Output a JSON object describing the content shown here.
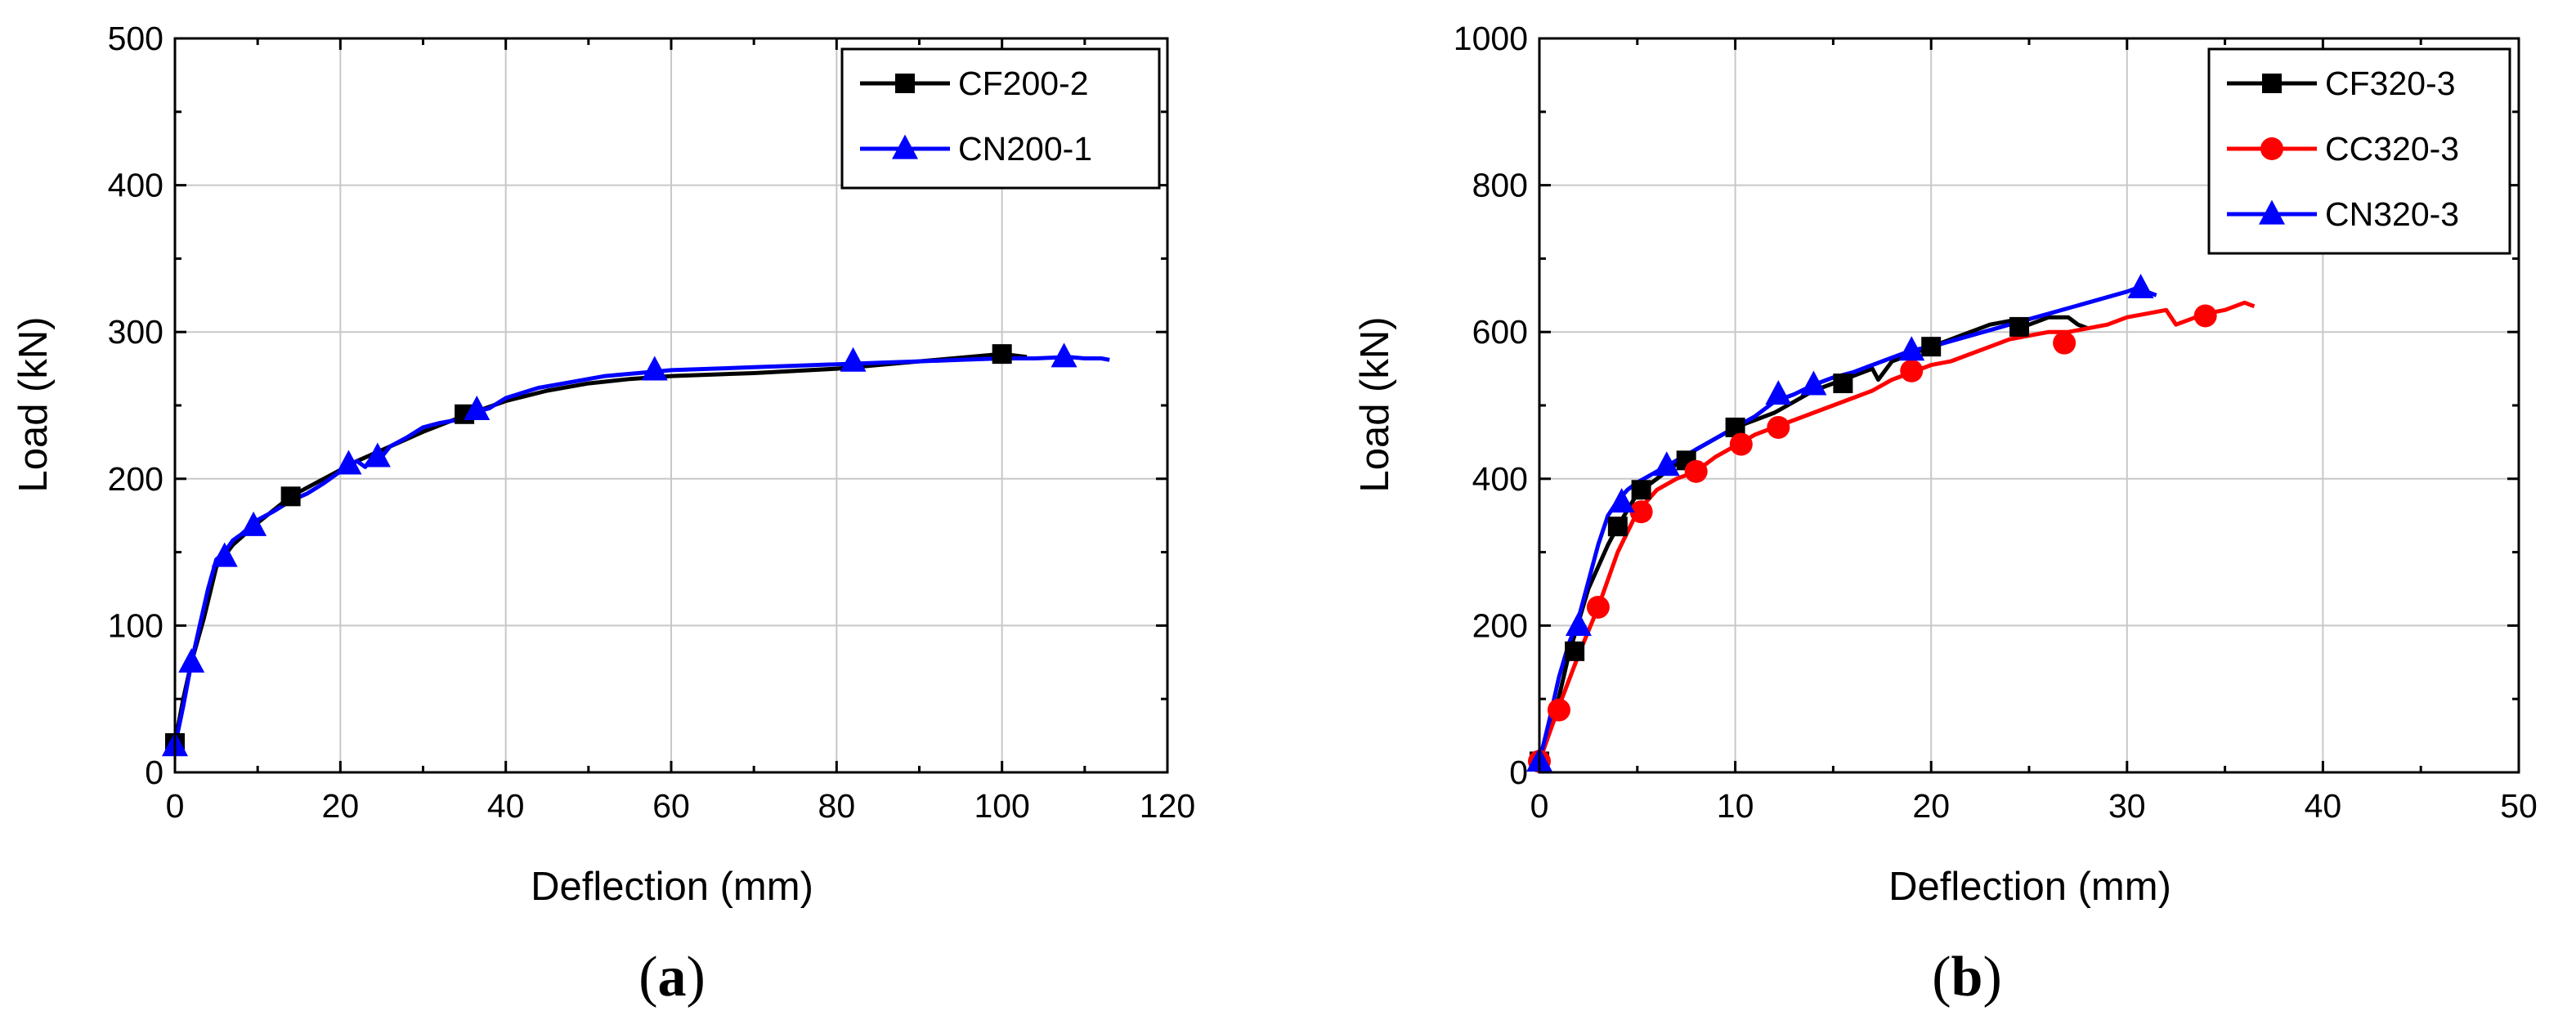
{
  "chart_data": [
    {
      "type": "line",
      "caption_letter": "a",
      "xlabel": "Deflection (mm)",
      "ylabel": "Load (kN)",
      "xlim": [
        0,
        120
      ],
      "ylim": [
        0,
        500
      ],
      "xticks": [
        0,
        20,
        40,
        60,
        80,
        100,
        120
      ],
      "yticks": [
        0,
        100,
        200,
        300,
        400,
        500
      ],
      "x_minor": 10,
      "y_minor": 50,
      "grid": true,
      "legend_position": "top-right",
      "series": [
        {
          "name": "CF200-2",
          "color": "#000000",
          "marker": "square",
          "x": [
            0,
            1,
            2,
            3.5,
            5,
            7,
            10,
            14,
            18,
            22,
            26,
            30,
            35,
            40,
            45,
            50,
            55,
            60,
            70,
            80,
            90,
            100,
            103
          ],
          "y": [
            20,
            50,
            75,
            105,
            140,
            155,
            170,
            188,
            200,
            212,
            222,
            232,
            243,
            253,
            260,
            265,
            268,
            270,
            272,
            275,
            280,
            285,
            283
          ],
          "marker_x": [
            0,
            14,
            35,
            100
          ],
          "marker_y": [
            20,
            188,
            244,
            285
          ]
        },
        {
          "name": "CN200-1",
          "color": "#0000ff",
          "marker": "triangle",
          "x": [
            0,
            1,
            2,
            3,
            4,
            5,
            6,
            7,
            8,
            9,
            10,
            12,
            14,
            16,
            18,
            20,
            21,
            22,
            23,
            24,
            25,
            26,
            28,
            30,
            32,
            34,
            36,
            38,
            40,
            44,
            48,
            52,
            56,
            60,
            65,
            70,
            75,
            80,
            85,
            90,
            95,
            100,
            104,
            108,
            110,
            112,
            113
          ],
          "y": [
            18,
            45,
            75,
            100,
            125,
            145,
            150,
            158,
            162,
            167,
            172,
            178,
            185,
            190,
            197,
            205,
            210,
            212,
            208,
            216,
            215,
            222,
            228,
            235,
            238,
            240,
            245,
            248,
            255,
            262,
            266,
            270,
            272,
            274,
            275,
            276,
            277,
            278,
            279,
            280,
            281,
            282,
            282,
            283,
            282,
            282,
            281
          ],
          "marker_x": [
            0,
            2,
            6,
            9.5,
            21,
            24.5,
            36.5,
            58,
            82,
            107.5
          ],
          "marker_y": [
            18,
            75,
            147,
            168,
            210,
            215,
            247,
            274,
            280,
            283
          ]
        }
      ]
    },
    {
      "type": "line",
      "caption_letter": "b",
      "xlabel": "Deflection (mm)",
      "ylabel": "Load (kN)",
      "xlim": [
        0,
        50
      ],
      "ylim": [
        0,
        1000
      ],
      "xticks": [
        0,
        10,
        20,
        30,
        40,
        50
      ],
      "yticks": [
        0,
        200,
        400,
        600,
        800,
        1000
      ],
      "x_minor": 5,
      "y_minor": 100,
      "grid": true,
      "legend_position": "top-right",
      "series": [
        {
          "name": "CF320-3",
          "color": "#000000",
          "marker": "square",
          "x": [
            0,
            0.8,
            1.5,
            2.5,
            3.5,
            4,
            5,
            6,
            7,
            8,
            9,
            10,
            11,
            12,
            13,
            14,
            15,
            16,
            17,
            17.3,
            18,
            19,
            20,
            21,
            22,
            23,
            24,
            25,
            26,
            27,
            27.5,
            28
          ],
          "y": [
            15,
            80,
            160,
            250,
            310,
            335,
            380,
            400,
            420,
            440,
            455,
            470,
            480,
            490,
            505,
            520,
            530,
            540,
            550,
            535,
            560,
            570,
            580,
            590,
            600,
            610,
            615,
            610,
            620,
            620,
            610,
            605
          ],
          "marker_x": [
            0,
            1.8,
            4,
            5.2,
            7.5,
            10,
            15.5,
            20,
            24.5
          ],
          "marker_y": [
            15,
            165,
            335,
            385,
            425,
            470,
            530,
            580,
            607
          ]
        },
        {
          "name": "CC320-3",
          "color": "#ff0000",
          "marker": "circle",
          "x": [
            0,
            1,
            2,
            3,
            4,
            5,
            6,
            7,
            8,
            9,
            10,
            11,
            12,
            13,
            14,
            15,
            16,
            17,
            18,
            19,
            20,
            21,
            22,
            23,
            24,
            25,
            26,
            27,
            28,
            29,
            30,
            31,
            32,
            32.5,
            33,
            34,
            35,
            36,
            36.5
          ],
          "y": [
            15,
            90,
            160,
            225,
            300,
            355,
            385,
            400,
            410,
            430,
            445,
            460,
            470,
            480,
            490,
            500,
            510,
            520,
            535,
            545,
            555,
            560,
            570,
            580,
            590,
            595,
            600,
            600,
            605,
            610,
            620,
            625,
            630,
            610,
            615,
            625,
            630,
            640,
            635
          ],
          "marker_x": [
            0,
            1,
            3,
            5.2,
            8,
            10.3,
            12.2,
            19,
            26.8,
            34
          ],
          "marker_y": [
            15,
            85,
            225,
            355,
            410,
            447,
            470,
            547,
            585,
            622
          ]
        },
        {
          "name": "CN320-3",
          "color": "#0000ff",
          "marker": "triangle",
          "x": [
            0,
            0.5,
            1,
            1.5,
            2,
            2.5,
            3,
            3.5,
            4,
            4.5,
            5,
            6,
            7,
            8,
            9,
            10,
            11,
            12,
            13,
            14,
            15,
            16,
            17,
            18,
            19,
            20,
            22,
            24,
            26,
            28,
            30,
            30.5,
            31,
            31.5
          ],
          "y": [
            15,
            70,
            130,
            175,
            210,
            260,
            310,
            350,
            370,
            385,
            395,
            410,
            425,
            440,
            455,
            470,
            485,
            505,
            515,
            528,
            538,
            545,
            555,
            565,
            575,
            580,
            595,
            610,
            625,
            640,
            655,
            660,
            655,
            650
          ],
          "marker_x": [
            0,
            2,
            4.2,
            6.5,
            12.2,
            14,
            19,
            30.7
          ],
          "marker_y": [
            15,
            200,
            368,
            418,
            515,
            528,
            575,
            660
          ]
        }
      ]
    }
  ]
}
